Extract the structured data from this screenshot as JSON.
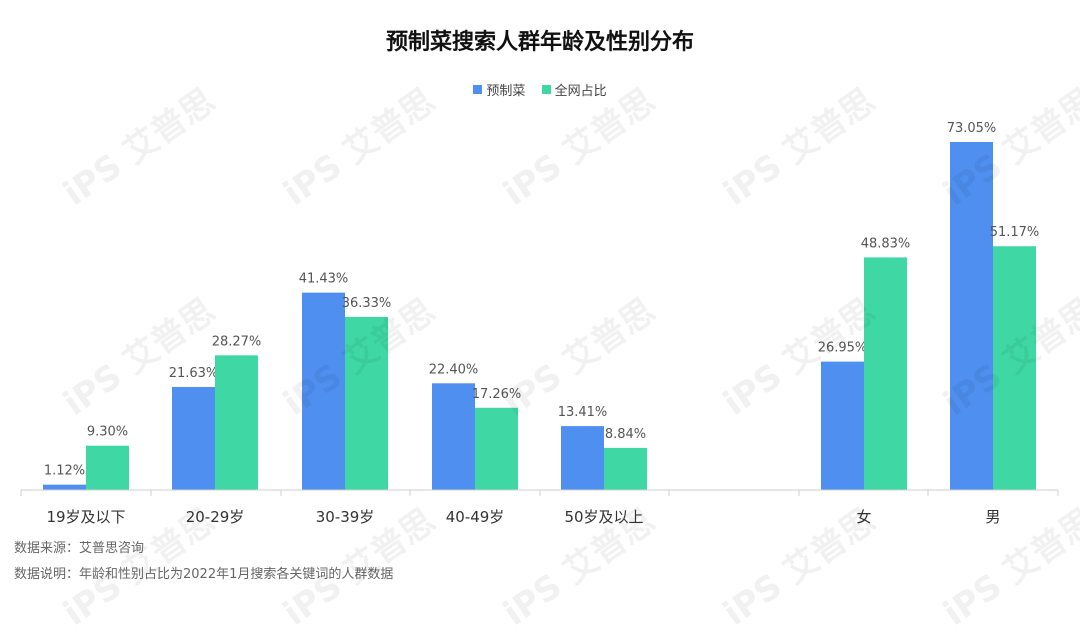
{
  "title": "预制菜搜索人群年龄及性别分布",
  "legend": [
    {
      "name": "预制菜",
      "color": "#4f8ff0"
    },
    {
      "name": "全网占比",
      "color": "#3fd8a4"
    }
  ],
  "footer": {
    "source": "数据来源：艾普思咨询",
    "note": "数据说明：年龄和性别占比为2022年1月搜索各关键词的人群数据"
  },
  "watermark_text": "iPS 艾普思",
  "chart_data": {
    "type": "bar",
    "title": "预制菜搜索人群年龄及性别分布",
    "xlabel": "",
    "ylabel": "",
    "grid": false,
    "legend_position": "top",
    "groups": [
      {
        "categories": [
          "19岁及以下",
          "20-29岁",
          "30-39岁",
          "40-49岁",
          "50岁及以上"
        ]
      },
      {
        "categories": [
          "女",
          "男"
        ]
      }
    ],
    "categories": [
      "19岁及以下",
      "20-29岁",
      "30-39岁",
      "40-49岁",
      "50岁及以上",
      "",
      "女",
      "男"
    ],
    "series": [
      {
        "name": "预制菜",
        "color": "#4f8ff0",
        "values": [
          1.12,
          21.63,
          41.43,
          22.4,
          13.41,
          null,
          26.95,
          73.05
        ],
        "labels": [
          "1.12%",
          "21.63%",
          "41.43%",
          "22.40%",
          "13.41%",
          "",
          "26.95%",
          "73.05%"
        ]
      },
      {
        "name": "全网占比",
        "color": "#3fd8a4",
        "values": [
          9.3,
          28.27,
          36.33,
          17.26,
          8.84,
          null,
          48.83,
          51.17
        ],
        "labels": [
          "9.30%",
          "28.27%",
          "36.33%",
          "17.26%",
          "8.84%",
          "",
          "48.83%",
          "51.17%"
        ]
      }
    ],
    "ylim": [
      0,
      80
    ]
  }
}
